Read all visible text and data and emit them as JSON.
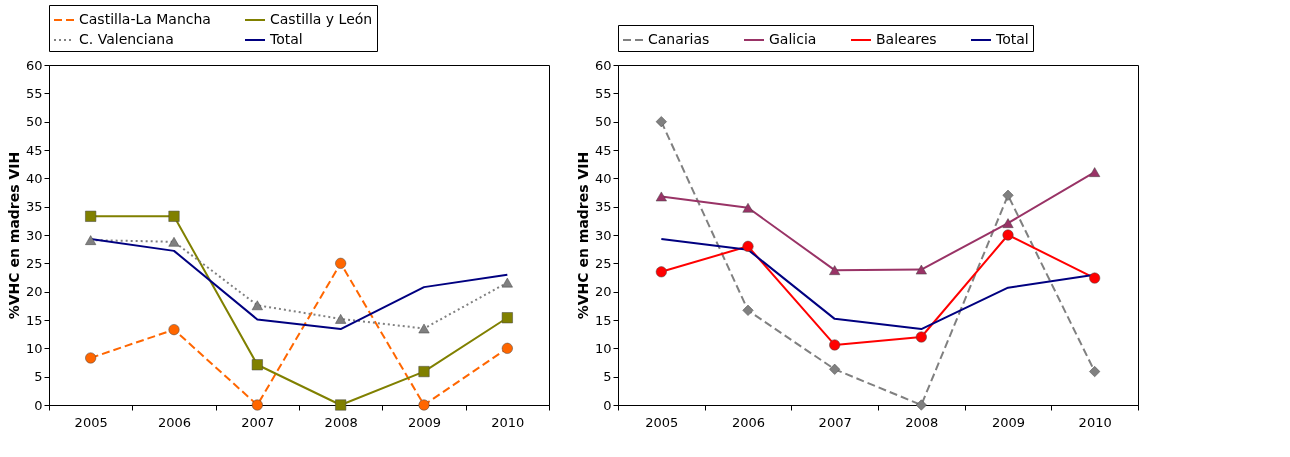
{
  "chart_data": [
    {
      "type": "line",
      "ylabel": "%VHC en madres VIH",
      "categories": [
        "2005",
        "2006",
        "2007",
        "2008",
        "2009",
        "2010"
      ],
      "ylim": [
        0,
        60
      ],
      "yticks": [
        0,
        5,
        10,
        15,
        20,
        25,
        30,
        35,
        40,
        45,
        50,
        55,
        60
      ],
      "grid": false,
      "legend": "top",
      "series": [
        {
          "name": "Castilla-La Mancha",
          "color": "#ff6600",
          "marker": "circle",
          "line_style": "dashed",
          "values": [
            8.3,
            13.3,
            0,
            25,
            0,
            10
          ]
        },
        {
          "name": "Castilla y León",
          "color": "#808000",
          "marker": "square",
          "line_style": "solid",
          "values": [
            33.3,
            33.3,
            7.1,
            0,
            5.9,
            15.4
          ]
        },
        {
          "name": "C. Valenciana",
          "color": "#808080",
          "marker": "triangle",
          "line_style": "dotted",
          "values": [
            29.1,
            28.8,
            17.6,
            15.2,
            13.5,
            21.6
          ]
        },
        {
          "name": "Total",
          "color": "#000080",
          "marker": "none",
          "line_style": "solid",
          "values": [
            29.3,
            27.2,
            15.1,
            13.4,
            20.8,
            23.0
          ]
        }
      ]
    },
    {
      "type": "line",
      "ylabel": "%VHC en madres VIH",
      "categories": [
        "2005",
        "2006",
        "2007",
        "2008",
        "2009",
        "2010"
      ],
      "ylim": [
        0,
        60
      ],
      "yticks": [
        0,
        5,
        10,
        15,
        20,
        25,
        30,
        35,
        40,
        45,
        50,
        55,
        60
      ],
      "grid": false,
      "legend": "top",
      "series": [
        {
          "name": "Canarias",
          "color": "#808080",
          "marker": "diamond",
          "line_style": "dashed",
          "values": [
            50,
            16.7,
            6.3,
            0,
            37,
            5.9
          ]
        },
        {
          "name": "Galicia",
          "color": "#993366",
          "marker": "triangle",
          "line_style": "solid",
          "values": [
            36.8,
            34.8,
            23.8,
            23.9,
            32.1,
            41.1
          ]
        },
        {
          "name": "Baleares",
          "color": "#ff0000",
          "marker": "circle",
          "line_style": "solid",
          "values": [
            23.5,
            28,
            10.6,
            12,
            30,
            22.4
          ]
        },
        {
          "name": "Total",
          "color": "#000080",
          "marker": "none",
          "line_style": "solid",
          "values": [
            29.3,
            27.4,
            15.2,
            13.4,
            20.7,
            23.0
          ]
        }
      ]
    }
  ]
}
